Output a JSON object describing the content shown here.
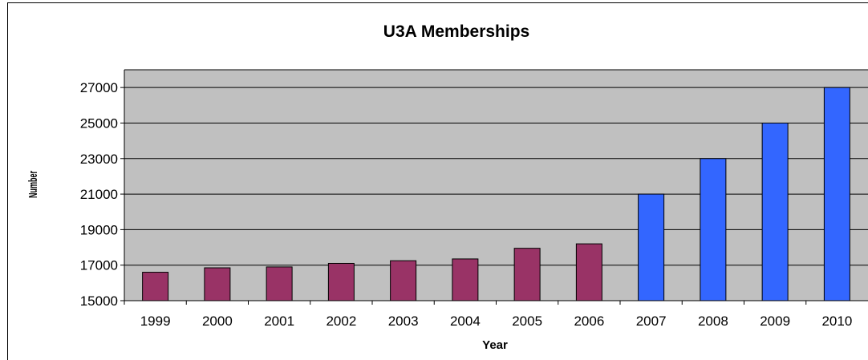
{
  "chart_data": {
    "type": "bar",
    "title": "U3A Memberships",
    "xlabel": "Year",
    "ylabel": "Number",
    "categories": [
      "1999",
      "2000",
      "2001",
      "2002",
      "2003",
      "2004",
      "2005",
      "2006",
      "2007",
      "2008",
      "2009",
      "2010"
    ],
    "values": [
      16600,
      16850,
      16900,
      17100,
      17250,
      17350,
      17950,
      18200,
      21000,
      23000,
      25000,
      27000
    ],
    "bar_colors": [
      "#993366",
      "#993366",
      "#993366",
      "#993366",
      "#993366",
      "#993366",
      "#993366",
      "#993366",
      "#3366FF",
      "#3366FF",
      "#3366FF",
      "#3366FF"
    ],
    "ylim": [
      15000,
      28000
    ],
    "yticks": [
      15000,
      17000,
      19000,
      21000,
      23000,
      25000,
      27000
    ],
    "grid": true,
    "legend": "none",
    "plot_background": "#C0C0C0"
  }
}
